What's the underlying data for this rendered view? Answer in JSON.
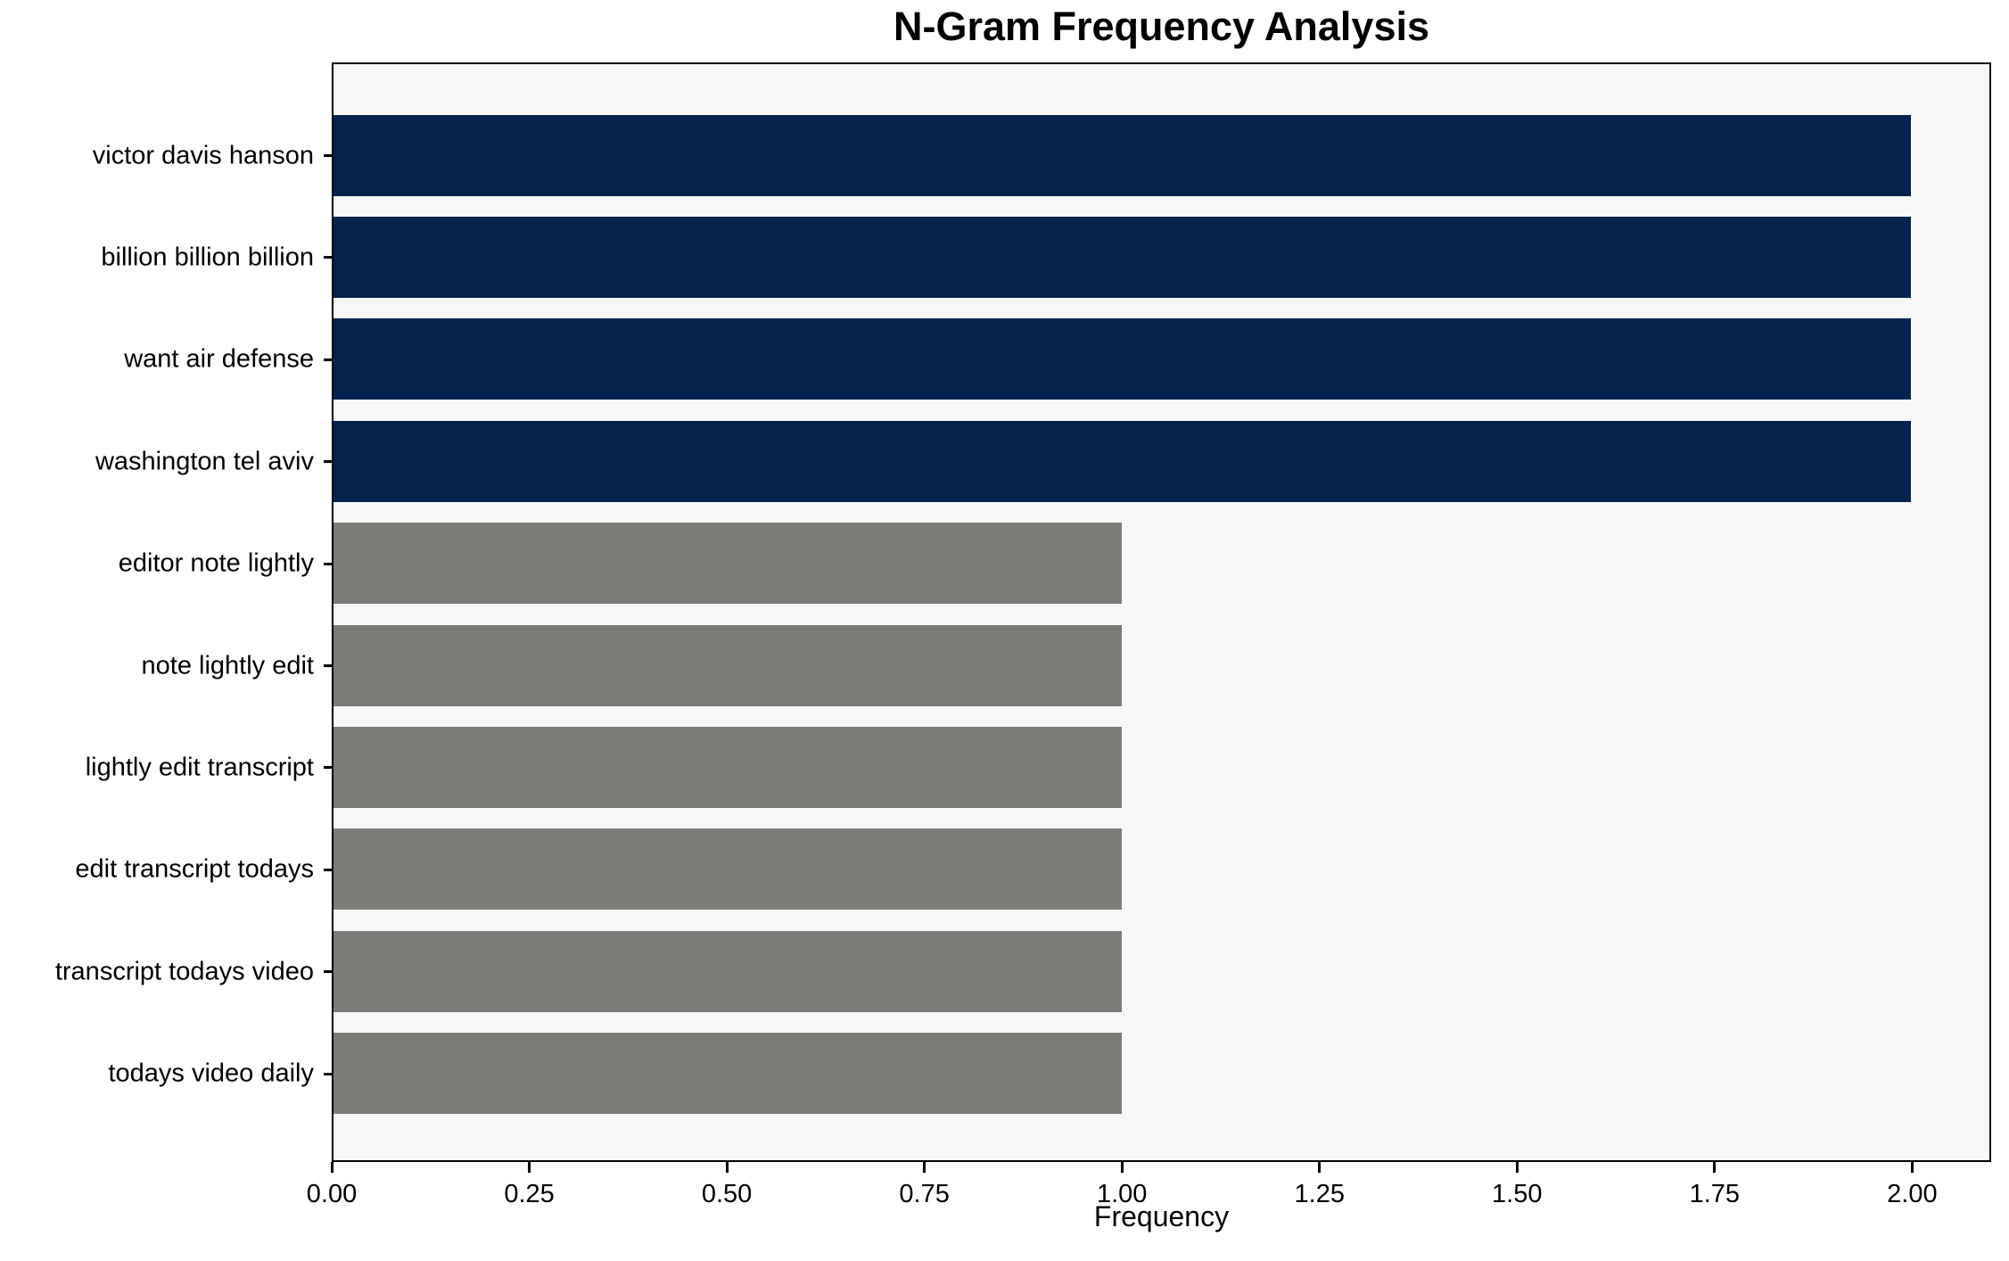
{
  "chart_data": {
    "type": "bar",
    "orientation": "horizontal",
    "title": "N-Gram Frequency Analysis",
    "xlabel": "Frequency",
    "ylabel": "",
    "categories": [
      "victor davis hanson",
      "billion billion billion",
      "want air defense",
      "washington tel aviv",
      "editor note lightly",
      "note lightly edit",
      "lightly edit transcript",
      "edit transcript todays",
      "transcript todays video",
      "todays video daily"
    ],
    "values": [
      2,
      2,
      2,
      2,
      1,
      1,
      1,
      1,
      1,
      1
    ],
    "bar_colors": [
      "#03234e",
      "#03234e",
      "#03234e",
      "#03234e",
      "#7b7b78",
      "#7b7b78",
      "#7b7b78",
      "#7b7b78",
      "#7b7b78",
      "#7b7b78"
    ],
    "xlim": [
      0,
      2.1
    ],
    "xticks": [
      0,
      0.25,
      0.5,
      0.75,
      1.0,
      1.25,
      1.5,
      1.75,
      2.0
    ],
    "xtick_labels": [
      "0.00",
      "0.25",
      "0.50",
      "0.75",
      "1.00",
      "1.25",
      "1.50",
      "1.75",
      "2.00"
    ],
    "grid": false,
    "legend_position": "none",
    "colors": {
      "navy": "#03234e",
      "gray": "#7b7b78",
      "plot_background": "#f7f7f7",
      "figure_background": "#ffffff",
      "axis": "#000000"
    }
  }
}
